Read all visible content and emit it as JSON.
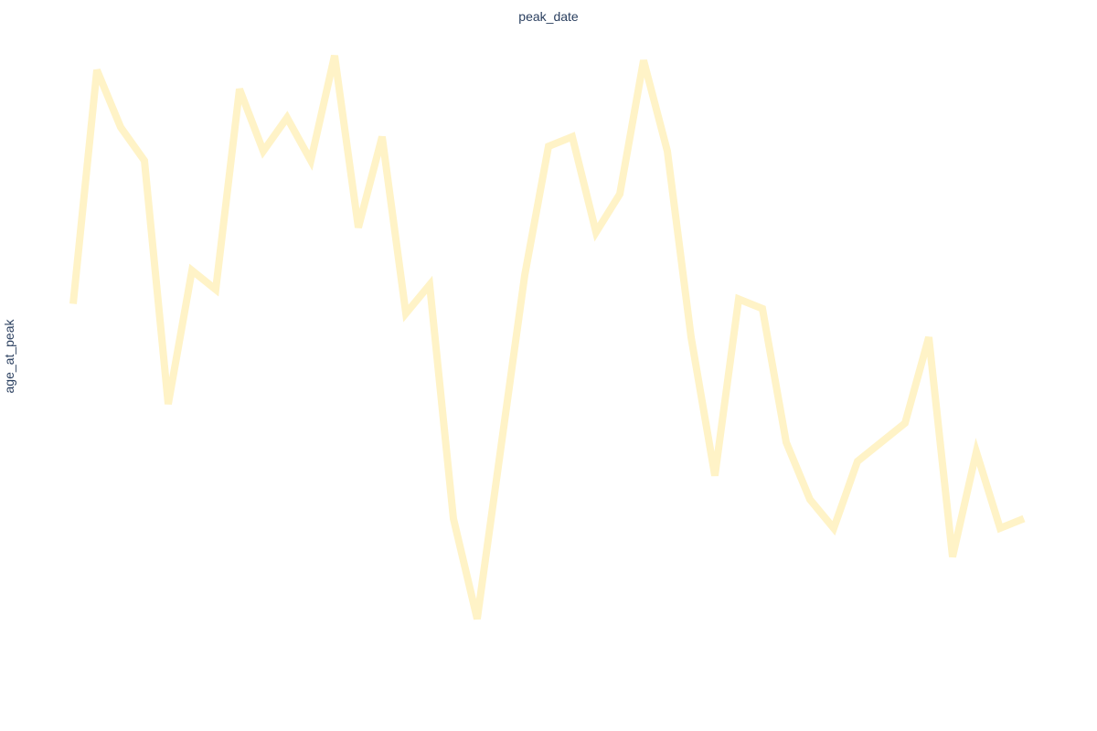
{
  "chart_data": {
    "type": "line",
    "xlabel": "peak_date",
    "ylabel": "age_at_peak",
    "line_color": "#fff3c7",
    "grid": false,
    "legend": false,
    "y_inverted": false,
    "x": [
      1,
      2,
      3,
      4,
      5,
      6,
      7,
      8,
      9,
      10,
      11,
      12,
      13,
      14,
      15,
      16,
      17,
      18,
      19,
      20,
      21,
      22,
      23,
      24,
      25,
      26,
      27,
      28,
      29,
      30,
      31,
      32,
      33,
      34,
      35,
      36,
      37,
      38,
      39,
      40,
      41
    ],
    "series": [
      {
        "name": "",
        "values": [
          63,
          87.5,
          81.5,
          78,
          52.5,
          66.5,
          64.5,
          85.5,
          79,
          82.5,
          78,
          89,
          71,
          80.5,
          62,
          65,
          40.5,
          30,
          48,
          66,
          79.5,
          80.5,
          70.5,
          74.5,
          88.5,
          79,
          59.5,
          45,
          63.5,
          62.5,
          48.5,
          42.5,
          39.5,
          46.5,
          48.5,
          50.5,
          59.5,
          36.5,
          47.5,
          39.5,
          40.5
        ]
      }
    ],
    "ylim": [
      24,
      91
    ]
  }
}
